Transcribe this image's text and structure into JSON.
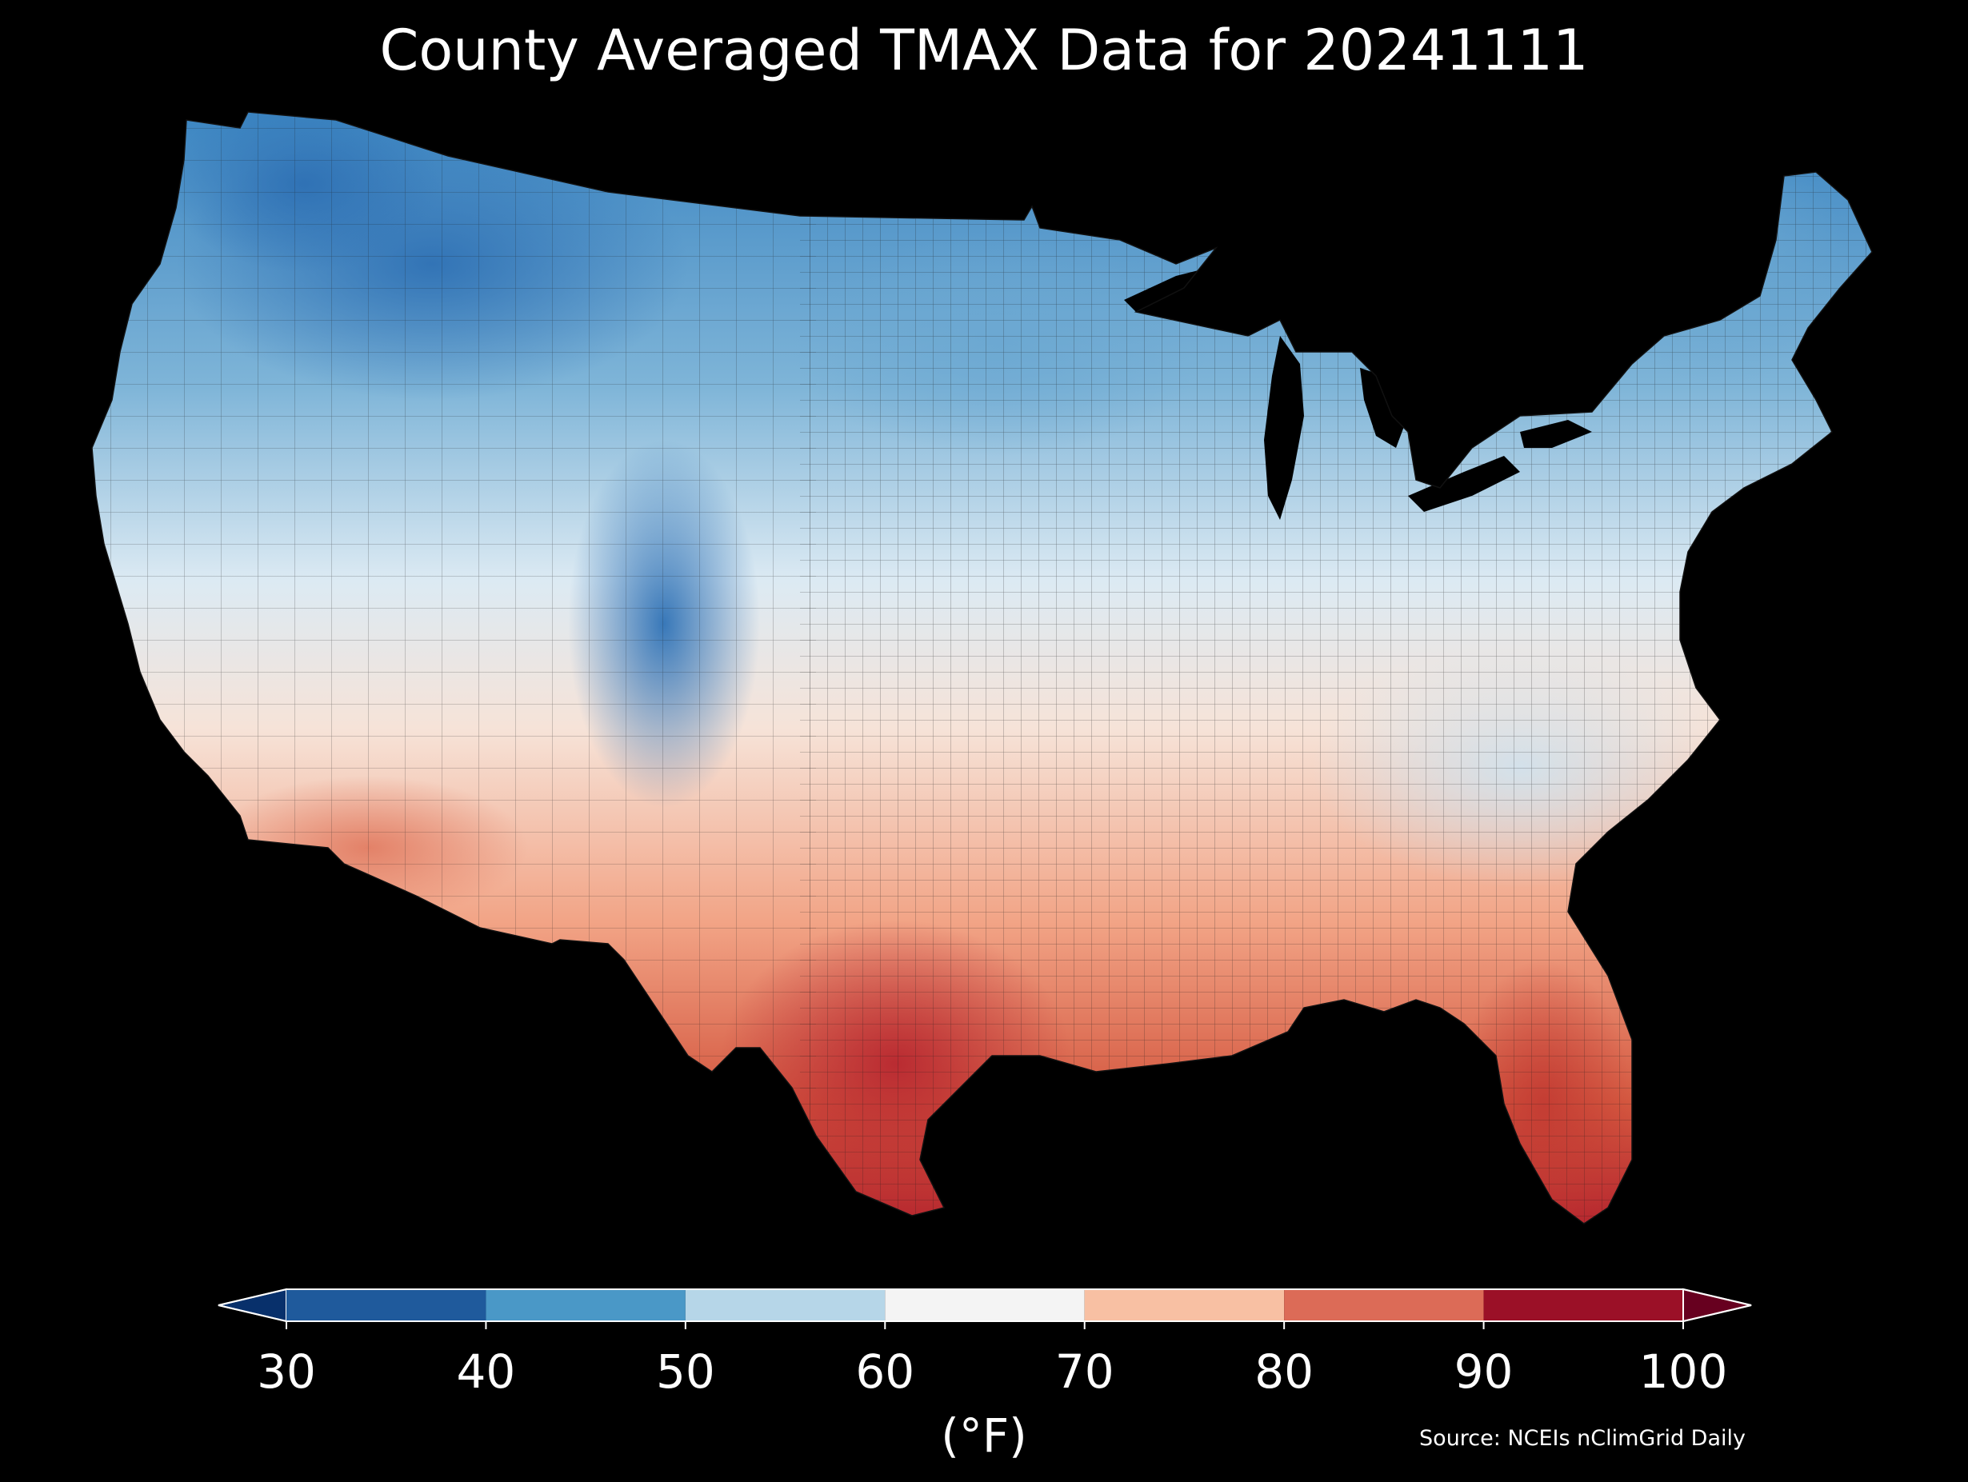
{
  "title": "County Averaged TMAX Data for 20241111",
  "map": {
    "region": "Contiguous United States",
    "level": "county",
    "variable": "TMAX",
    "background": "#000000"
  },
  "colorbar": {
    "ticks": [
      "30",
      "40",
      "50",
      "60",
      "70",
      "80",
      "90",
      "100"
    ],
    "bins": [
      {
        "min": 30,
        "max": 40,
        "color": "#1f5a9c"
      },
      {
        "min": 40,
        "max": 50,
        "color": "#4a98c7"
      },
      {
        "min": 50,
        "max": 60,
        "color": "#b6d6e8"
      },
      {
        "min": 60,
        "max": 70,
        "color": "#f4f4f4"
      },
      {
        "min": 70,
        "max": 80,
        "color": "#f8c0a3"
      },
      {
        "min": 80,
        "max": 90,
        "color": "#dc6b57"
      },
      {
        "min": 90,
        "max": 100,
        "color": "#9b1027"
      }
    ],
    "under_color": "#08306b",
    "over_color": "#67001f",
    "units": "(°F)"
  },
  "source": "Source: NCEIs nClimGrid Daily"
}
